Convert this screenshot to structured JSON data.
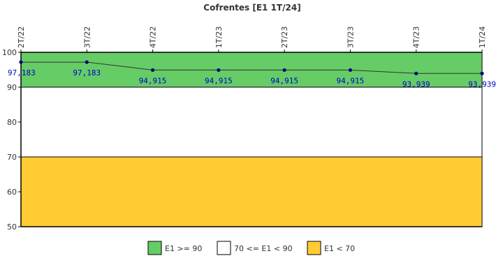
{
  "chart_data": {
    "type": "line",
    "title": "Cofrentes [E1 1T/24]",
    "xlabel": "",
    "ylabel": "",
    "categories": [
      "2T/22",
      "3T/22",
      "4T/22",
      "1T/23",
      "2T/23",
      "3T/23",
      "4T/23",
      "1T/24"
    ],
    "series": [
      {
        "values": [
          97.183,
          97.183,
          94.915,
          94.915,
          94.915,
          94.915,
          93.939,
          93.939
        ],
        "labels": [
          "97,183",
          "97,183",
          "94,915",
          "94,915",
          "94,915",
          "94,915",
          "93,939",
          "93,939"
        ],
        "color": "#000080"
      }
    ],
    "ylim": [
      50,
      100
    ],
    "yticks": [
      "50",
      "60",
      "70",
      "80",
      "90",
      "100"
    ],
    "bands": [
      {
        "name": "E1 >= 90",
        "from": 90,
        "to": 100,
        "color": "#66cc66"
      },
      {
        "name": "70 <= E1 < 90",
        "from": 70,
        "to": 90,
        "color": "#ffffff"
      },
      {
        "name": "E1 < 70",
        "from": 50,
        "to": 70,
        "color": "#ffcc33"
      }
    ],
    "legend_position": "bottom",
    "grid": false
  }
}
